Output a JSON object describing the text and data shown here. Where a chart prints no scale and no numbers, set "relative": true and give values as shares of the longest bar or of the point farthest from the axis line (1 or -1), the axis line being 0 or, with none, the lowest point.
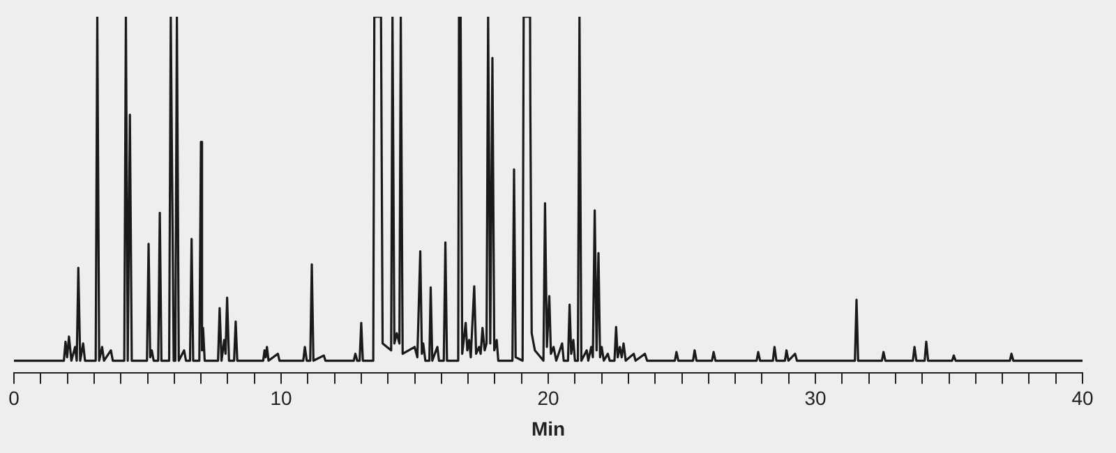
{
  "chart_data": {
    "type": "line",
    "xlabel": "Min",
    "relative": true,
    "color": "#1a1a1a",
    "marker": "none",
    "line_style": "solid",
    "grid": false,
    "legend": false,
    "tick_labels": "x",
    "xlim": [
      0,
      40
    ],
    "xticks": [
      0,
      {
        "value": 1,
        "label": null
      },
      {
        "value": 2,
        "label": null
      },
      {
        "value": 3,
        "label": null
      },
      {
        "value": 4,
        "label": null
      },
      {
        "value": 5,
        "label": null
      },
      {
        "value": 6,
        "label": null
      },
      {
        "value": 7,
        "label": null
      },
      {
        "value": 8,
        "label": null
      },
      {
        "value": 9,
        "label": null
      },
      10,
      {
        "value": 11,
        "label": null
      },
      {
        "value": 12,
        "label": null
      },
      {
        "value": 13,
        "label": null
      },
      {
        "value": 14,
        "label": null
      },
      {
        "value": 15,
        "label": null
      },
      {
        "value": 16,
        "label": null
      },
      {
        "value": 17,
        "label": null
      },
      {
        "value": 18,
        "label": null
      },
      {
        "value": 19,
        "label": null
      },
      20,
      {
        "value": 21,
        "label": null
      },
      {
        "value": 22,
        "label": null
      },
      {
        "value": 23,
        "label": null
      },
      {
        "value": 24,
        "label": null
      },
      {
        "value": 25,
        "label": null
      },
      {
        "value": 26,
        "label": null
      },
      {
        "value": 27,
        "label": null
      },
      {
        "value": 28,
        "label": null
      },
      {
        "value": 29,
        "label": null
      },
      30,
      {
        "value": 31,
        "label": null
      },
      {
        "value": 32,
        "label": null
      },
      {
        "value": 33,
        "label": null
      },
      {
        "value": 34,
        "label": null
      },
      {
        "value": 35,
        "label": null
      },
      {
        "value": 36,
        "label": null
      },
      {
        "value": 37,
        "label": null
      },
      {
        "value": 38,
        "label": null
      },
      {
        "value": 39,
        "label": null
      },
      40
    ],
    "x": [
      0,
      1.87,
      1.93,
      1.99,
      2.06,
      2.15,
      2.29,
      2.35,
      2.41,
      2.48,
      2.59,
      2.66,
      3.06,
      3.12,
      3.19,
      3.3,
      3.37,
      3.63,
      3.7,
      4.13,
      4.19,
      4.26,
      4.34,
      4.41,
      4.98,
      5.04,
      5.1,
      5.16,
      5.23,
      5.4,
      5.46,
      5.52,
      5.81,
      5.87,
      5.98,
      6.04,
      6.1,
      6.17,
      6.37,
      6.44,
      6.59,
      6.65,
      6.71,
      6.94,
      7,
      7.04,
      7.08,
      7.14,
      7.64,
      7.7,
      7.77,
      7.87,
      7.92,
      7.98,
      8.05,
      8.24,
      8.3,
      8.36,
      9.33,
      9.38,
      9.42,
      9.47,
      9.53,
      9.88,
      9.94,
      10.83,
      10.89,
      10.96,
      11.09,
      11.15,
      11.21,
      11.6,
      11.66,
      12.72,
      12.78,
      12.85,
      12.94,
      13,
      13.06,
      13.45,
      13.49,
      13.74,
      13.8,
      14.12,
      14.17,
      14.24,
      14.33,
      14.43,
      14.48,
      14.55,
      15,
      15.1,
      15.21,
      15.27,
      15.32,
      15.4,
      15.55,
      15.6,
      15.66,
      15.85,
      15.91,
      16.09,
      16.15,
      16.21,
      16.63,
      16.66,
      16.72,
      16.78,
      16.91,
      16.97,
      17.04,
      17.1,
      17.23,
      17.3,
      17.41,
      17.47,
      17.54,
      17.62,
      17.69,
      17.75,
      17.83,
      17.91,
      17.98,
      18.07,
      18.13,
      18.66,
      18.72,
      18.78,
      19.04,
      19.08,
      19.32,
      19.33,
      19.38,
      19.5,
      19.82,
      19.88,
      19.95,
      20.04,
      20.1,
      20.2,
      20.3,
      20.52,
      20.58,
      20.74,
      20.8,
      20.86,
      20.94,
      21,
      21.11,
      21.17,
      21.24,
      21.44,
      21.5,
      21.61,
      21.67,
      21.74,
      21.81,
      21.88,
      21.94,
      22,
      22.08,
      22.23,
      22.3,
      22.48,
      22.54,
      22.6,
      22.68,
      22.75,
      22.82,
      22.9,
      23.2,
      23.27,
      23.62,
      23.7,
      24.74,
      24.8,
      24.87,
      25.42,
      25.48,
      25.55,
      26.13,
      26.19,
      26.26,
      27.8,
      27.86,
      27.93,
      28.41,
      28.47,
      28.54,
      28.86,
      28.92,
      28.99,
      29.24,
      29.31,
      31.48,
      31.54,
      31.6,
      32.49,
      32.55,
      32.62,
      33.65,
      33.71,
      33.78,
      34.09,
      34.15,
      34.22,
      35.12,
      35.18,
      35.25,
      37.28,
      37.34,
      37.41,
      40
    ],
    "values": [
      0,
      0,
      0.055,
      0.01,
      0.07,
      0,
      0.04,
      0,
      0.27,
      0,
      0.05,
      0,
      0,
      1,
      0,
      0.04,
      0,
      0.03,
      0,
      0,
      1,
      0,
      0.715,
      0,
      0,
      0.34,
      0.01,
      0.03,
      0,
      0,
      0.43,
      0,
      0,
      1,
      0,
      0,
      1,
      0,
      0.03,
      0,
      0,
      0.354,
      0,
      0,
      0.636,
      0.03,
      0.095,
      0,
      0,
      0.153,
      0,
      0.06,
      0.02,
      0.183,
      0,
      0,
      0.114,
      0,
      0,
      0.03,
      0.01,
      0.04,
      0,
      0.02,
      0,
      0,
      0.04,
      0,
      0,
      0.28,
      0,
      0.015,
      0,
      0,
      0.02,
      0,
      0,
      0.11,
      0,
      0,
      1,
      1,
      0.05,
      0.03,
      1,
      0.05,
      0.08,
      0.05,
      1,
      0.02,
      0.04,
      0.01,
      0.318,
      0.02,
      0.05,
      0,
      0,
      0.213,
      0,
      0.04,
      0,
      0,
      0.344,
      0,
      0,
      1,
      1,
      0.02,
      0.11,
      0.03,
      0.06,
      0.01,
      0.216,
      0.02,
      0.04,
      0.02,
      0.095,
      0.03,
      0.05,
      1,
      0.05,
      0.88,
      0.03,
      0.06,
      0,
      0,
      0.556,
      0.01,
      0,
      1,
      1,
      0.74,
      0.08,
      0.03,
      0,
      0.458,
      0.04,
      0.188,
      0.02,
      0.04,
      0,
      0.05,
      0,
      0,
      0.163,
      0.02,
      0.06,
      0,
      0,
      1,
      0,
      0.03,
      0,
      0.04,
      0.01,
      0.437,
      0.03,
      0.313,
      0.01,
      0.04,
      0,
      0.02,
      0,
      0,
      0.098,
      0.01,
      0.04,
      0.01,
      0.05,
      0,
      0.02,
      0,
      0.02,
      0,
      0,
      0.025,
      0,
      0,
      0.03,
      0,
      0,
      0.025,
      0,
      0,
      0.025,
      0,
      0,
      0.04,
      0,
      0,
      0.03,
      0,
      0.02,
      0,
      0,
      0.177,
      0,
      0,
      0.025,
      0,
      0,
      0.04,
      0,
      0,
      0.055,
      0,
      0,
      0.015,
      0,
      0,
      0.02,
      0,
      0
    ]
  }
}
